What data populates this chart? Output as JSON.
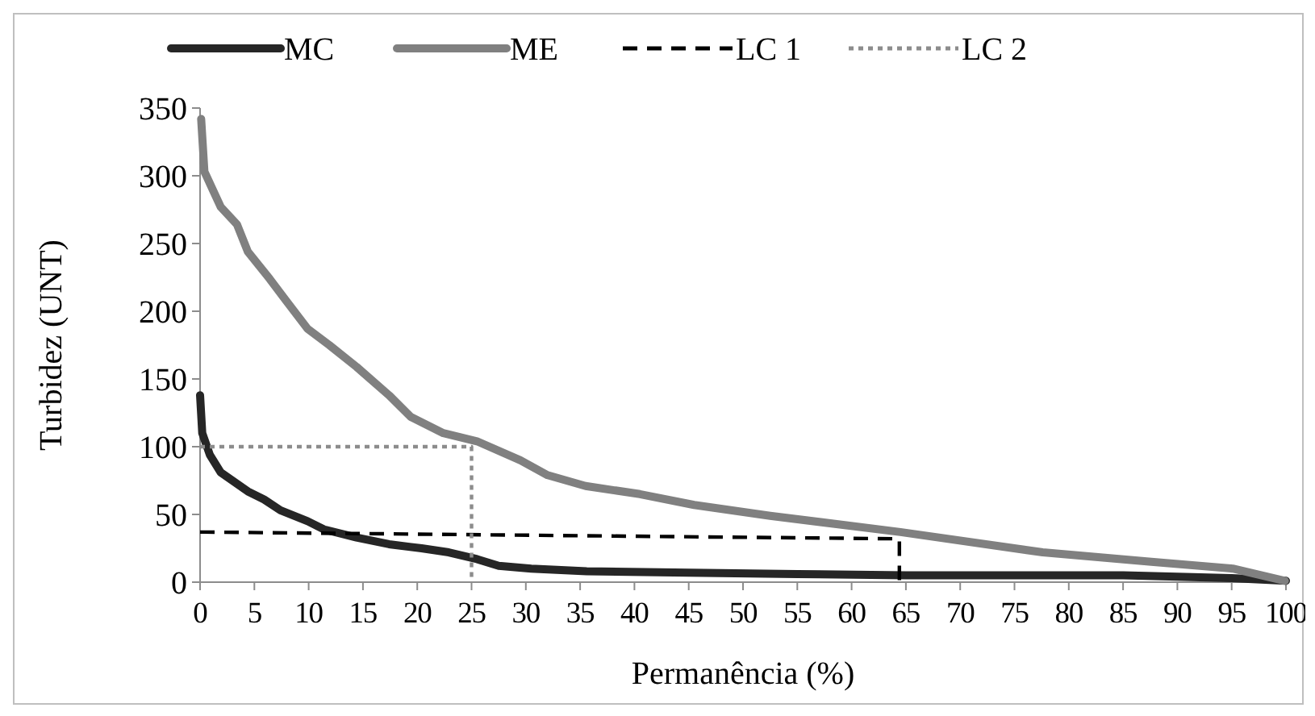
{
  "chart_data": {
    "type": "line",
    "xlabel": "Permanência (%)",
    "ylabel": "Turbidez (UNT)",
    "xlim": [
      0,
      100
    ],
    "xticks": [
      0,
      5,
      10,
      15,
      20,
      25,
      30,
      35,
      40,
      45,
      50,
      55,
      60,
      65,
      70,
      75,
      80,
      85,
      90,
      95,
      100
    ],
    "ylim": [
      0,
      350
    ],
    "yticks": [
      0,
      50,
      100,
      150,
      200,
      250,
      300,
      350
    ],
    "grid": false,
    "legend": "top",
    "series": [
      {
        "name": "MC",
        "color": "#262626",
        "line_style": "solid",
        "x": [
          0,
          0.2,
          0.9,
          1.9,
          4.4,
          5.9,
          7.4,
          9.9,
          11.4,
          14.4,
          17.4,
          20.4,
          22.9,
          25.5,
          27.5,
          30.5,
          35.6,
          45,
          55,
          65,
          75,
          85,
          90,
          95,
          100
        ],
        "values": [
          138,
          110,
          94,
          81,
          67,
          61,
          53,
          45,
          39,
          33,
          28,
          25,
          22,
          17,
          12,
          10,
          8,
          7,
          6,
          5,
          5,
          5,
          4,
          3,
          1
        ]
      },
      {
        "name": "ME",
        "color": "#808080",
        "line_style": "solid",
        "x": [
          0.1,
          0.4,
          1.9,
          3.4,
          4.4,
          6.4,
          7.9,
          9.9,
          11.9,
          14.4,
          17.4,
          19.4,
          22.4,
          25.5,
          29.5,
          32,
          35.5,
          40.5,
          45.5,
          52.5,
          64.5,
          77.6,
          87.6,
          95.1,
          99.9
        ],
        "values": [
          342,
          303,
          277,
          264,
          244,
          224,
          208,
          187,
          175,
          159,
          138,
          122,
          110,
          104,
          90,
          79,
          71,
          65,
          57,
          49,
          37,
          22,
          15,
          10,
          1
        ]
      },
      {
        "name": "LC 1",
        "color": "#000000",
        "line_style": "dashed",
        "x": [
          0,
          64.4,
          64.4
        ],
        "values": [
          37,
          32,
          0
        ]
      },
      {
        "name": "LC 2",
        "color": "#8c8c8c",
        "line_style": "dotted",
        "x": [
          0,
          25,
          25
        ],
        "values": [
          100,
          100,
          0
        ]
      }
    ]
  }
}
